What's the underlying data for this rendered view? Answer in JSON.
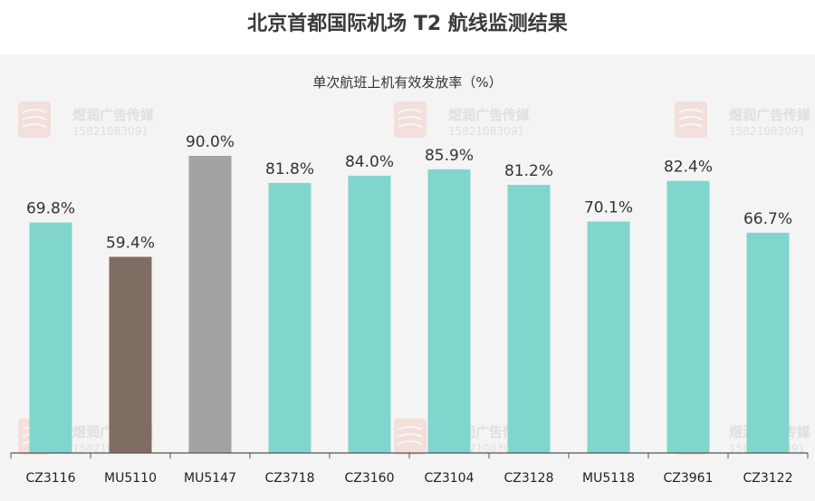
{
  "chart_data": {
    "type": "bar",
    "title": "北京首都国际机场 T2 航线监测结果",
    "subtitle": "单次航班上机有效发放率（%）",
    "categories": [
      "CZ3116",
      "MU5110",
      "MU5147",
      "CZ3718",
      "CZ3160",
      "CZ3104",
      "CZ3128",
      "MU5118",
      "CZ3961",
      "CZ3122"
    ],
    "values": [
      69.8,
      59.4,
      90.0,
      81.8,
      84.0,
      85.9,
      81.2,
      70.1,
      82.4,
      66.7
    ],
    "value_labels": [
      "69.8%",
      "59.4%",
      "90.0%",
      "81.8%",
      "84.0%",
      "85.9%",
      "81.2%",
      "70.1%",
      "82.4%",
      "66.7%"
    ],
    "colors": [
      "#80d6cd",
      "#7f6c63",
      "#a3a3a5",
      "#80d6cd",
      "#80d6cd",
      "#80d6cd",
      "#80d6cd",
      "#80d6cd",
      "#80d6cd",
      "#80d6cd"
    ],
    "ylim": [
      0,
      100
    ],
    "grid": false,
    "legend": "none"
  },
  "watermark": {
    "name": "煜润广告传媒",
    "phone": "15821083091"
  },
  "colors": {
    "axis": "#555555",
    "text": "#333333"
  }
}
